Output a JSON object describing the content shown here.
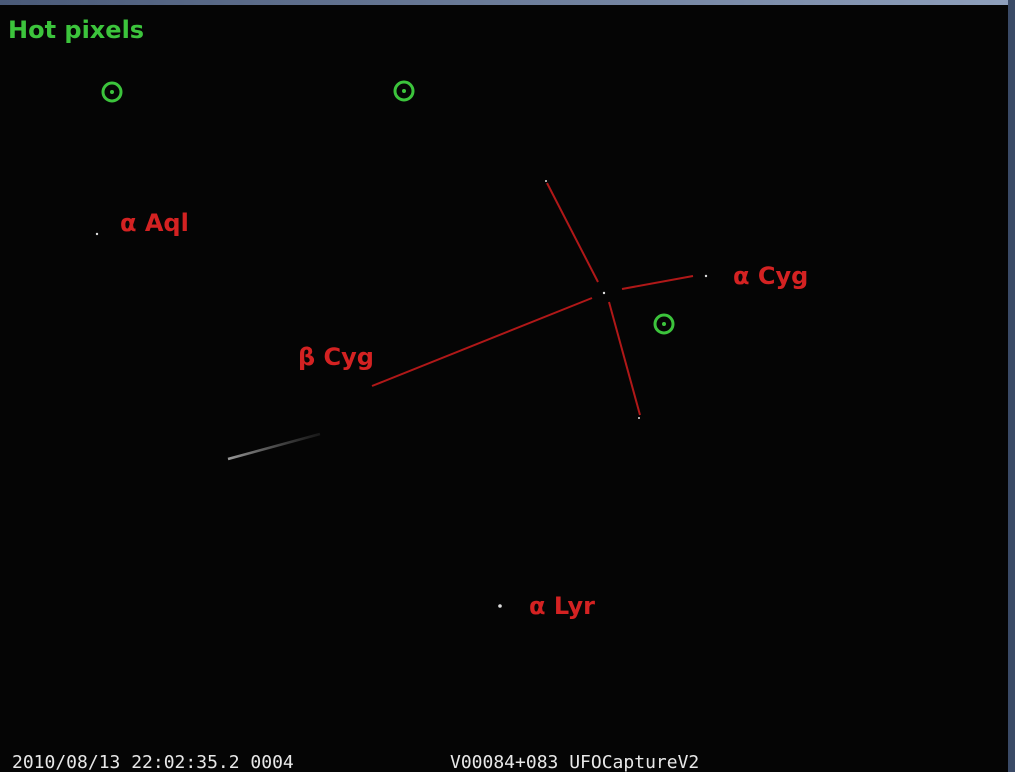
{
  "annotations": {
    "title": "Hot pixels",
    "stars": [
      "α Aql",
      "α Cyg",
      "β Cyg",
      "α Lyr"
    ]
  },
  "footer": {
    "timestamp": "2010/08/13 22:02:35.2 0004",
    "camera": "V00084+083 UFOCaptureV2"
  }
}
